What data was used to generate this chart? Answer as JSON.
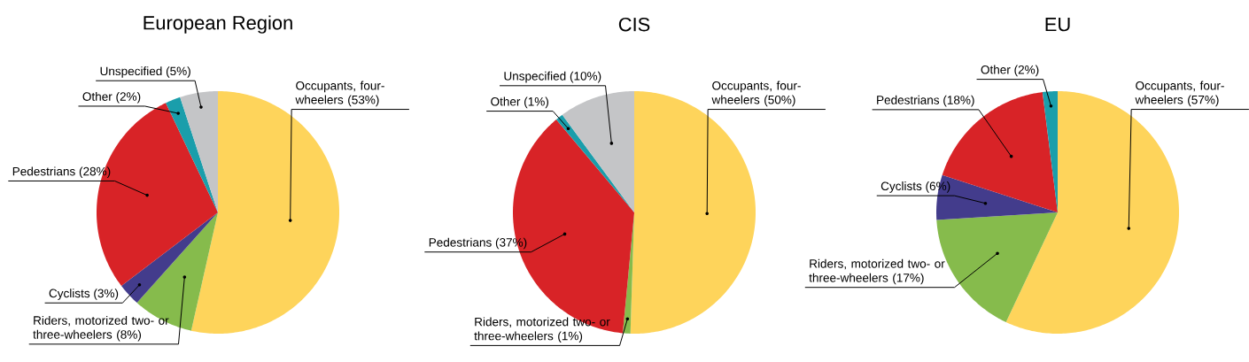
{
  "chart_data": [
    {
      "type": "pie",
      "title": "European Region",
      "categories": [
        "Occupants, four-wheelers",
        "Riders, motorized two- or three-wheelers",
        "Cyclists",
        "Pedestrians",
        "Other",
        "Unspecified"
      ],
      "values": [
        53,
        8,
        3,
        28,
        2,
        5
      ],
      "value_labels": [
        "(53%)",
        "(8%)",
        "(3%)",
        "(28%)",
        "(2%)",
        "(5%)"
      ],
      "colors": [
        "#fed45b",
        "#86bb4c",
        "#433c8c",
        "#d82327",
        "#1a9eab",
        "#c4c5c7"
      ]
    },
    {
      "type": "pie",
      "title": "CIS",
      "categories": [
        "Occupants, four-wheelers",
        "Riders, motorized two- or three-wheelers",
        "Pedestrians",
        "Other",
        "Unspecified"
      ],
      "values": [
        50,
        1,
        37,
        1,
        10
      ],
      "value_labels": [
        "(50%)",
        "(1%)",
        "(37%)",
        "(1%)",
        "(10%)"
      ],
      "colors": [
        "#fed45b",
        "#86bb4c",
        "#d82327",
        "#1a9eab",
        "#c4c5c7"
      ]
    },
    {
      "type": "pie",
      "title": "EU",
      "categories": [
        "Occupants, four-wheelers",
        "Riders, motorized two- or three-wheelers",
        "Cyclists",
        "Pedestrians",
        "Other"
      ],
      "values": [
        57,
        17,
        6,
        18,
        2
      ],
      "value_labels": [
        "(57%)",
        "(17%)",
        "(6%)",
        "(18%)",
        "(2%)"
      ],
      "colors": [
        "#fed45b",
        "#86bb4c",
        "#433c8c",
        "#d82327",
        "#1a9eab"
      ]
    }
  ]
}
